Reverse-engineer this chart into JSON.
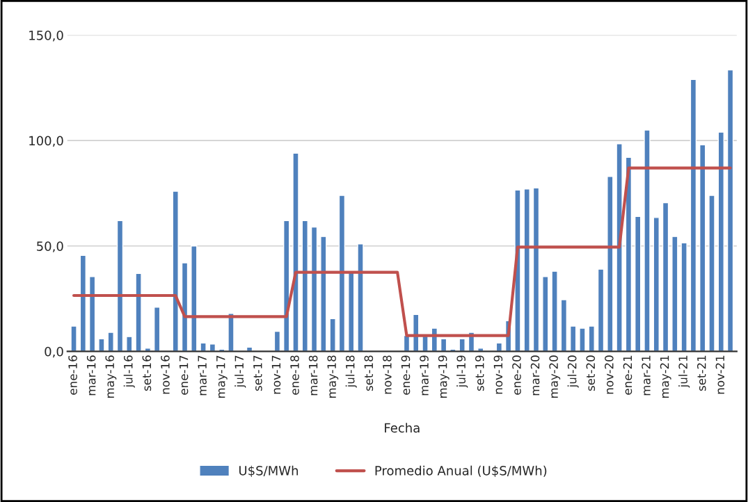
{
  "chart_data": {
    "type": "bar",
    "xlabel": "Fecha",
    "categories": [
      "ene-16",
      null,
      "mar-16",
      null,
      "may-16",
      null,
      "jul-16",
      null,
      "set-16",
      null,
      "nov-16",
      null,
      "ene-17",
      null,
      "mar-17",
      null,
      "may-17",
      null,
      "jul-17",
      null,
      "set-17",
      null,
      "nov-17",
      null,
      "ene-18",
      null,
      "mar-18",
      null,
      "may-18",
      null,
      "jul-18",
      null,
      "set-18",
      null,
      "nov-18",
      null,
      "ene-19",
      null,
      "mar-19",
      null,
      "may-19",
      null,
      "jul-19",
      null,
      "set-19",
      null,
      "nov-19",
      null,
      "ene-20",
      null,
      "mar-20",
      null,
      "may-20",
      null,
      "jul-20",
      null,
      "set-20",
      null,
      "nov-20",
      null,
      "ene-21",
      null,
      "mar-21",
      null,
      "may-21",
      null,
      "jul-21",
      null,
      "set-21",
      null,
      "nov-21",
      null
    ],
    "series": [
      {
        "name": "U$S/MWh",
        "color": "#4f81bd",
        "values": [
          12,
          45.5,
          35.5,
          6,
          9,
          62,
          7,
          37,
          1.5,
          21,
          null,
          76,
          42,
          50,
          4,
          3.5,
          1,
          18,
          null,
          2,
          null,
          null,
          9.5,
          62,
          94,
          62,
          59,
          54.5,
          15.5,
          74,
          37.5,
          51,
          null,
          null,
          null,
          null,
          7.5,
          17.5,
          8,
          11,
          6,
          1,
          6,
          9,
          1.5,
          null,
          4,
          14.5,
          76.5,
          77,
          77.5,
          35.5,
          38,
          24.5,
          12,
          11,
          12,
          39,
          83,
          98.5,
          92,
          64,
          105,
          63.5,
          70.5,
          54.5,
          51.5,
          129,
          98,
          74,
          104,
          133.5
        ]
      },
      {
        "name": "Promedio Anual (U$S/MWh)",
        "type": "line",
        "color": "#c0504d",
        "values": [
          26.5,
          26.5,
          26.5,
          26.5,
          26.5,
          26.5,
          26.5,
          26.5,
          26.5,
          26.5,
          26.5,
          26.5,
          16.5,
          16.5,
          16.5,
          16.5,
          16.5,
          16.5,
          16.5,
          16.5,
          16.5,
          16.5,
          16.5,
          16.5,
          37.5,
          37.5,
          37.5,
          37.5,
          37.5,
          37.5,
          37.5,
          37.5,
          37.5,
          37.5,
          37.5,
          37.5,
          7.5,
          7.5,
          7.5,
          7.5,
          7.5,
          7.5,
          7.5,
          7.5,
          7.5,
          7.5,
          7.5,
          7.5,
          49.5,
          49.5,
          49.5,
          49.5,
          49.5,
          49.5,
          49.5,
          49.5,
          49.5,
          49.5,
          49.5,
          49.5,
          87,
          87,
          87,
          87,
          87,
          87,
          87,
          87,
          87,
          87,
          87,
          87
        ]
      }
    ],
    "ylim": [
      0,
      150
    ],
    "yticks": [
      {
        "value": 0,
        "label": "0,0"
      },
      {
        "value": 50,
        "label": "50,0"
      },
      {
        "value": 100,
        "label": "100,0"
      },
      {
        "value": 150,
        "label": "150,0"
      }
    ],
    "grid": "y",
    "legend": "bottom",
    "marker": "none",
    "line_style": "solid"
  }
}
